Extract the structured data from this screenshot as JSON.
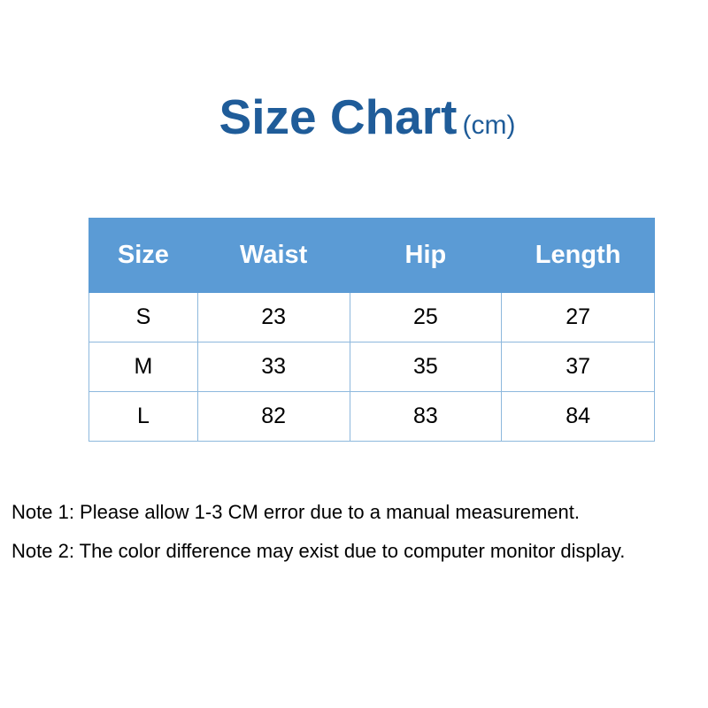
{
  "title": {
    "main": "Size Chart",
    "unit": "(cm)"
  },
  "table": {
    "headers": [
      "Size",
      "Waist",
      "Hip",
      "Length"
    ],
    "rows": [
      [
        "S",
        "23",
        "25",
        "27"
      ],
      [
        "M",
        "33",
        "35",
        "37"
      ],
      [
        "L",
        "82",
        "83",
        "84"
      ]
    ]
  },
  "notes": [
    "Note 1: Please allow 1-3 CM error due to a manual measurement.",
    "Note 2: The color difference may exist due to computer monitor display."
  ],
  "colors": {
    "title": "#1f5c99",
    "header_bg": "#5b9bd5",
    "border": "#8db8dd"
  }
}
